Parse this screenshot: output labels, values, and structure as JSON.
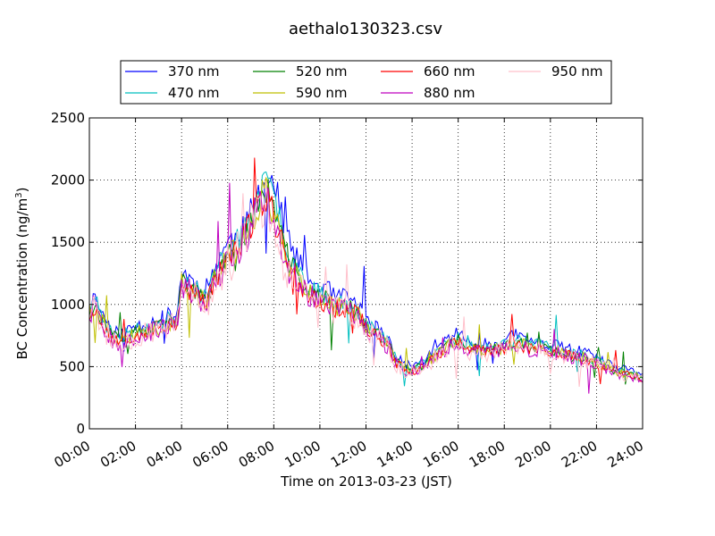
{
  "chart_data": {
    "type": "line",
    "title": "aethalo130323.csv",
    "xlabel": "Time on 2013-03-23 (JST)",
    "ylabel_main": "BC Concentration (ng/m",
    "ylabel_sup": "3",
    "ylabel_close": ")",
    "xlim_hours": [
      0,
      24
    ],
    "ylim": [
      0,
      2500
    ],
    "grid": true,
    "legend_position": "top",
    "x_ticks": [
      {
        "hour": 0,
        "label": "00:00"
      },
      {
        "hour": 2,
        "label": "02:00"
      },
      {
        "hour": 4,
        "label": "04:00"
      },
      {
        "hour": 6,
        "label": "06:00"
      },
      {
        "hour": 8,
        "label": "08:00"
      },
      {
        "hour": 10,
        "label": "10:00"
      },
      {
        "hour": 12,
        "label": "12:00"
      },
      {
        "hour": 14,
        "label": "14:00"
      },
      {
        "hour": 16,
        "label": "16:00"
      },
      {
        "hour": 18,
        "label": "18:00"
      },
      {
        "hour": 20,
        "label": "20:00"
      },
      {
        "hour": 22,
        "label": "22:00"
      },
      {
        "hour": 24,
        "label": "24:00"
      }
    ],
    "y_ticks": [
      {
        "value": 0,
        "label": "0"
      },
      {
        "value": 500,
        "label": "500"
      },
      {
        "value": 1000,
        "label": "1000"
      },
      {
        "value": 1500,
        "label": "1500"
      },
      {
        "value": 2000,
        "label": "2000"
      },
      {
        "value": 2500,
        "label": "2500"
      }
    ],
    "profile": {
      "hours": [
        0,
        0.3,
        0.5,
        0.8,
        1.0,
        1.3,
        1.5,
        2.0,
        2.5,
        3.0,
        3.3,
        3.5,
        3.8,
        4.0,
        4.3,
        4.6,
        5.0,
        5.3,
        5.6,
        6.0,
        6.3,
        6.6,
        7.0,
        7.3,
        7.6,
        8.0,
        8.3,
        8.6,
        9.0,
        9.3,
        9.6,
        10.0,
        10.3,
        10.6,
        11.0,
        11.3,
        11.6,
        12.0,
        12.3,
        12.6,
        13.0,
        13.3,
        13.6,
        14.0,
        14.5,
        15.0,
        15.5,
        16.0,
        16.5,
        17.0,
        17.5,
        18.0,
        18.5,
        19.0,
        19.5,
        20.0,
        20.5,
        21.0,
        21.5,
        22.0,
        22.5,
        23.0,
        23.5,
        24.0
      ],
      "values": [
        950,
        1000,
        900,
        800,
        750,
        720,
        740,
        780,
        800,
        830,
        850,
        870,
        860,
        1200,
        1150,
        1100,
        1050,
        1150,
        1300,
        1400,
        1450,
        1550,
        1700,
        1850,
        1950,
        1750,
        1550,
        1350,
        1250,
        1150,
        1100,
        1050,
        1050,
        1000,
        1000,
        980,
        950,
        850,
        800,
        750,
        680,
        550,
        500,
        480,
        520,
        600,
        680,
        720,
        650,
        640,
        650,
        660,
        720,
        670,
        660,
        640,
        620,
        600,
        580,
        540,
        490,
        460,
        440,
        420
      ]
    },
    "series": [
      {
        "name": "370 nm",
        "color": "#0000ff",
        "scale": 1.06,
        "seed": 11,
        "noise": 0.07,
        "peak_shift": 0.35
      },
      {
        "name": "470 nm",
        "color": "#00bfbf",
        "scale": 1.02,
        "seed": 23,
        "noise": 0.07,
        "peak_shift": 0.25
      },
      {
        "name": "520 nm",
        "color": "#008000",
        "scale": 0.99,
        "seed": 37,
        "noise": 0.07,
        "peak_shift": 0.15
      },
      {
        "name": "590 nm",
        "color": "#bfbf00",
        "scale": 0.98,
        "seed": 41,
        "noise": 0.08,
        "peak_shift": 0.1
      },
      {
        "name": "660 nm",
        "color": "#ff0000",
        "scale": 0.97,
        "seed": 53,
        "noise": 0.08,
        "peak_shift": 0.05
      },
      {
        "name": "880 nm",
        "color": "#bf00bf",
        "scale": 0.96,
        "seed": 67,
        "noise": 0.1,
        "peak_shift": 0.0
      },
      {
        "name": "950 nm",
        "color": "#ffc0cb",
        "scale": 0.95,
        "seed": 79,
        "noise": 0.13,
        "peak_shift": -0.1
      }
    ]
  }
}
